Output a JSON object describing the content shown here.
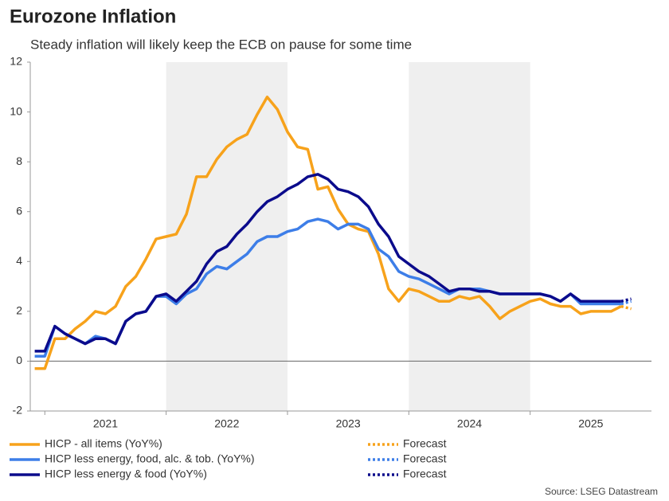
{
  "chart_data": {
    "type": "line",
    "title": "Eurozone Inflation",
    "subtitle": "Steady inflation will likely keep the ECB on pause for some time",
    "source": "Source: LSEG Datastream",
    "xlim": [
      2020.88,
      2026
    ],
    "xticks": [
      2021,
      2022,
      2023,
      2024,
      2025
    ],
    "ylim": [
      -2,
      12
    ],
    "yticks": [
      -2,
      0,
      2,
      4,
      6,
      8,
      10,
      12
    ],
    "grid": false,
    "x": [
      2020.917,
      2021,
      2021.083,
      2021.167,
      2021.25,
      2021.333,
      2021.417,
      2021.5,
      2021.583,
      2021.667,
      2021.75,
      2021.833,
      2021.917,
      2022,
      2022.083,
      2022.167,
      2022.25,
      2022.333,
      2022.417,
      2022.5,
      2022.583,
      2022.667,
      2022.75,
      2022.833,
      2022.917,
      2023,
      2023.083,
      2023.167,
      2023.25,
      2023.333,
      2023.417,
      2023.5,
      2023.583,
      2023.667,
      2023.75,
      2023.833,
      2023.917,
      2024,
      2024.083,
      2024.167,
      2024.25,
      2024.333,
      2024.417,
      2024.5,
      2024.583,
      2024.667,
      2024.75,
      2024.833,
      2024.917,
      2025,
      2025.083,
      2025.167,
      2025.25,
      2025.333,
      2025.417,
      2025.5,
      2025.583,
      2025.667,
      2025.75
    ],
    "series": [
      {
        "name": "HICP - all items (YoY%)",
        "color": "#f7a21b",
        "values": [
          -0.3,
          -0.3,
          0.9,
          0.9,
          1.3,
          1.6,
          2.0,
          1.9,
          2.2,
          3.0,
          3.4,
          4.1,
          4.9,
          5.0,
          5.1,
          5.9,
          7.4,
          7.4,
          8.1,
          8.6,
          8.9,
          9.1,
          9.9,
          10.6,
          10.1,
          9.2,
          8.6,
          8.5,
          6.9,
          7.0,
          6.1,
          5.5,
          5.3,
          5.2,
          4.3,
          2.9,
          2.4,
          2.9,
          2.8,
          2.6,
          2.4,
          2.4,
          2.6,
          2.5,
          2.6,
          2.2,
          1.7,
          2.0,
          2.2,
          2.4,
          2.5,
          2.3,
          2.2,
          2.2,
          1.9,
          2.0,
          2.0,
          2.0,
          2.2
        ]
      },
      {
        "name": "HICP less energy, food, alc. & tob. (YoY%)",
        "color": "#3d7ee8",
        "values": [
          0.2,
          0.2,
          1.4,
          1.1,
          0.9,
          0.7,
          1.0,
          0.9,
          0.7,
          1.6,
          1.9,
          2.0,
          2.6,
          2.6,
          2.3,
          2.7,
          2.9,
          3.5,
          3.8,
          3.7,
          4.0,
          4.3,
          4.8,
          5.0,
          5.0,
          5.2,
          5.3,
          5.6,
          5.7,
          5.6,
          5.3,
          5.5,
          5.5,
          5.3,
          4.5,
          4.2,
          3.6,
          3.4,
          3.3,
          3.1,
          2.9,
          2.7,
          2.9,
          2.9,
          2.9,
          2.8,
          2.7,
          2.7,
          2.7,
          2.7,
          2.7,
          2.6,
          2.4,
          2.7,
          2.3,
          2.3,
          2.3,
          2.3,
          2.3
        ]
      },
      {
        "name": "HICP less energy & food (YoY%)",
        "color": "#0b0b8c",
        "values": [
          0.4,
          0.4,
          1.4,
          1.1,
          0.9,
          0.7,
          0.9,
          0.9,
          0.7,
          1.6,
          1.9,
          2.0,
          2.6,
          2.7,
          2.4,
          2.8,
          3.2,
          3.9,
          4.4,
          4.6,
          5.1,
          5.5,
          6.0,
          6.4,
          6.6,
          6.9,
          7.1,
          7.4,
          7.5,
          7.3,
          6.9,
          6.8,
          6.6,
          6.2,
          5.5,
          5.0,
          4.2,
          3.9,
          3.6,
          3.4,
          3.1,
          2.8,
          2.9,
          2.9,
          2.8,
          2.8,
          2.7,
          2.7,
          2.7,
          2.7,
          2.7,
          2.6,
          2.4,
          2.7,
          2.4,
          2.4,
          2.4,
          2.4,
          2.4
        ]
      },
      {
        "name": "Forecast",
        "color": "#f7a21b",
        "dashed": true,
        "x": [
          2025.75,
          2025.833
        ],
        "values": [
          2.2,
          2.1
        ]
      },
      {
        "name": "Forecast",
        "color": "#3d7ee8",
        "dashed": true,
        "x": [
          2025.75,
          2025.833
        ],
        "values": [
          2.3,
          2.4
        ]
      },
      {
        "name": "Forecast",
        "color": "#0b0b8c",
        "dashed": true,
        "x": [
          2025.75,
          2025.833
        ],
        "values": [
          2.4,
          2.5
        ]
      }
    ]
  }
}
